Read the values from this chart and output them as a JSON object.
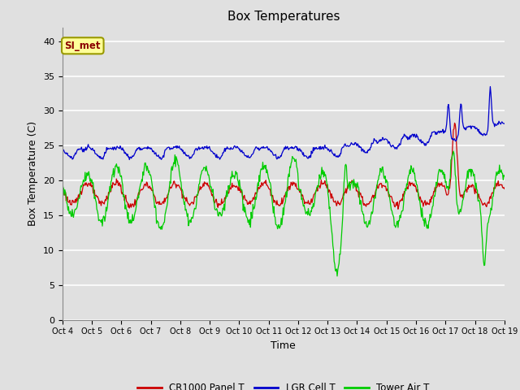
{
  "title": "Box Temperatures",
  "xlabel": "Time",
  "ylabel": "Box Temperature (C)",
  "ylim": [
    0,
    42
  ],
  "yticks": [
    0,
    5,
    10,
    15,
    20,
    25,
    30,
    35,
    40
  ],
  "x_labels": [
    "Oct 4",
    "Oct 5",
    "Oct 6",
    "Oct 7",
    "Oct 8",
    "Oct 9",
    "Oct 10",
    "Oct 11",
    "Oct 12",
    "Oct 13",
    "Oct 14",
    "Oct 15",
    "Oct 16",
    "Oct 17",
    "Oct 18",
    "Oct 19"
  ],
  "bg_color": "#e0e0e0",
  "plot_bg_color": "#e0e0e0",
  "grid_color": "#ffffff",
  "cr1000_color": "#cc0000",
  "lgr_color": "#0000cc",
  "tower_color": "#00cc00",
  "legend_labels": [
    "CR1000 Panel T",
    "LGR Cell T",
    "Tower Air T"
  ],
  "annotation_text": "SI_met",
  "annotation_color": "#8b0000",
  "annotation_bg": "#ffff99",
  "annotation_border": "#999900"
}
